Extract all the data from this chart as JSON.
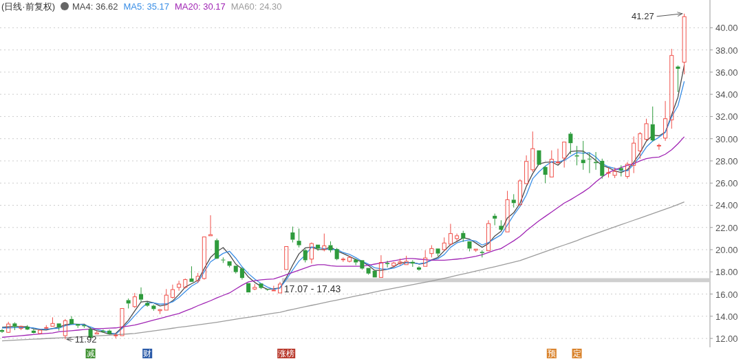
{
  "chart_data": {
    "type": "candlestick",
    "title": "(日线·前复权)",
    "legend": "top left",
    "grid": "y",
    "categories": [
      null,
      null,
      null,
      null,
      null,
      null,
      null,
      null,
      null,
      null,
      null,
      null,
      null,
      null,
      null,
      null,
      null,
      null,
      null,
      null,
      null,
      null,
      null,
      null,
      null,
      null,
      null,
      null,
      null,
      null,
      null,
      null,
      null,
      null,
      null,
      null,
      null,
      null,
      null,
      null,
      null,
      null,
      null,
      null,
      null,
      null,
      null,
      null,
      null,
      null,
      null,
      null,
      null,
      null,
      null,
      null,
      null,
      null,
      null,
      null,
      null,
      null,
      null,
      null,
      null,
      null,
      null,
      null,
      null,
      null,
      null,
      null,
      null,
      null,
      null,
      null,
      null,
      null,
      null,
      null,
      null,
      null,
      null,
      null,
      null,
      null,
      null,
      null,
      null,
      null,
      null,
      null,
      null,
      null,
      null,
      null,
      null,
      null,
      null,
      null,
      null,
      null,
      null,
      null,
      null,
      null,
      null,
      null,
      null
    ],
    "ylim": [
      11.2,
      42.5
    ],
    "yticks": [
      {
        "value": 12,
        "label": "12.00"
      },
      {
        "value": 14,
        "label": "14.00"
      },
      {
        "value": 16,
        "label": "16.00"
      },
      {
        "value": 18,
        "label": "18.00"
      },
      {
        "value": 20,
        "label": "20.00"
      },
      {
        "value": 22,
        "label": "22.00"
      },
      {
        "value": 24,
        "label": "24.00"
      },
      {
        "value": 26,
        "label": "26.00"
      },
      {
        "value": 28,
        "label": "28.00"
      },
      {
        "value": 30,
        "label": "30.00"
      },
      {
        "value": 32,
        "label": "32.00"
      },
      {
        "value": 34,
        "label": "34.00"
      },
      {
        "value": 36,
        "label": "36.00"
      },
      {
        "value": 38,
        "label": "38.00"
      },
      {
        "value": 40,
        "label": "40.00"
      }
    ],
    "colors": [
      "#2e9b3c",
      "#f0504a",
      "#2e9b3c",
      "#f0504a",
      "#2e9b3c",
      "#2e9b3c",
      "#f0504a",
      "#f0504a",
      "#f0504a",
      "#2e9b3c",
      "#f0504a",
      "#2e9b3c",
      "#2e9b3c",
      "#2e9b3c",
      "#2e9b3c",
      "#f0504a",
      "#2e9b3c",
      "#2e9b3c",
      "#f0504a",
      "#f0504a",
      "#2e9b3c",
      "#f0504a",
      "#2e9b3c",
      "#2e9b3c",
      "#2e9b3c",
      "#f0504a",
      "#f0504a",
      "#f0504a",
      "#f0504a",
      "#f0504a",
      "#2e9b3c",
      "#f0504a",
      "#f0504a",
      "#f0504a",
      "#2e9b3c",
      "#2e9b3c",
      "#2e9b3c",
      "#2e9b3c",
      "#2e9b3c",
      "#2e9b3c",
      "#f0504a",
      "#2e9b3c",
      "#2e9b3c",
      "#f0504a",
      "#f0504a",
      "#f0504a",
      "#2e9b3c",
      "#2e9b3c",
      "#2e9b3c",
      "#f0504a",
      "#2e9b3c",
      "#f0504a",
      "#2e9b3c",
      "#2e9b3c",
      "#f0504a",
      "#f0504a",
      "#2e9b3c",
      "#2e9b3c",
      "#2e9b3c",
      "#2e9b3c",
      "#f0504a",
      "#2e9b3c",
      "#f0504a",
      "#f0504a",
      "#f0504a",
      "#2e9b3c",
      "#2e9b3c",
      "#f0504a",
      "#f0504a",
      "#2e9b3c",
      "#f0504a",
      "#f0504a",
      "#f0504a",
      "#2e9b3c",
      "#2e9b3c",
      "#f0504a",
      "#2e9b3c",
      "#f0504a",
      "#2e9b3c",
      "#2e9b3c",
      "#f0504a",
      "#2e9b3c",
      "#f0504a",
      "#f0504a",
      "#f0504a",
      "#2e9b3c",
      "#2e9b3c",
      "#f0504a",
      "#f0504a",
      "#f0504a",
      "#2e9b3c",
      "#2e9b3c",
      "#2e9b3c",
      "#2e9b3c",
      "#2e9b3c",
      "#2e9b3c",
      "#f0504a",
      "#f0504a",
      "#2e9b3c",
      "#f0504a",
      "#f0504a",
      "#f0504a",
      "#f0504a",
      "#2e9b3c",
      "#f0504a",
      "#f0504a",
      "#f0504a",
      "#2e9b3c",
      "#f0504a"
    ],
    "ohlc": [
      [
        12.75,
        12.85,
        12.5,
        12.6
      ],
      [
        12.55,
        13.5,
        12.5,
        13.3
      ],
      [
        13.35,
        13.45,
        12.75,
        13.05
      ],
      [
        12.9,
        13.15,
        12.75,
        13.1
      ],
      [
        13.05,
        13.2,
        12.75,
        12.8
      ],
      [
        12.7,
        12.85,
        12.45,
        12.5
      ],
      [
        12.45,
        12.75,
        12.45,
        12.75
      ],
      [
        12.95,
        13.2,
        12.85,
        12.98
      ],
      [
        13.1,
        13.9,
        13.1,
        13.35
      ],
      [
        13.35,
        13.35,
        12.7,
        13.0
      ],
      [
        12.25,
        13.75,
        11.92,
        13.6
      ],
      [
        13.75,
        14.0,
        13.25,
        13.3
      ],
      [
        13.3,
        13.3,
        12.95,
        13.15
      ],
      [
        13.2,
        13.2,
        12.95,
        13.1
      ],
      [
        12.85,
        13.0,
        12.05,
        12.05
      ],
      [
        12.4,
        12.7,
        12.4,
        12.5
      ],
      [
        12.7,
        12.8,
        12.5,
        12.6
      ],
      [
        12.7,
        12.8,
        12.4,
        12.4
      ],
      [
        12.25,
        12.45,
        12.0,
        12.3
      ],
      [
        12.25,
        14.7,
        12.25,
        14.7
      ],
      [
        15.45,
        15.6,
        14.7,
        15.15
      ],
      [
        14.87,
        16.1,
        14.75,
        15.75
      ],
      [
        16.0,
        16.6,
        15.3,
        15.5
      ],
      [
        15.2,
        15.3,
        14.85,
        14.95
      ],
      [
        14.95,
        15.05,
        14.5,
        14.65
      ],
      [
        14.5,
        14.65,
        14.2,
        14.6
      ],
      [
        14.55,
        16.45,
        14.55,
        15.9
      ],
      [
        15.7,
        16.85,
        15.6,
        16.4
      ],
      [
        16.6,
        17.2,
        16.3,
        16.9
      ],
      [
        16.6,
        17.4,
        16.5,
        17.3
      ],
      [
        17.4,
        18.5,
        17.1,
        17.1
      ],
      [
        17.2,
        17.9,
        17.0,
        17.6
      ],
      [
        17.4,
        21.15,
        17.3,
        21.15
      ],
      [
        21.25,
        23.1,
        21.25,
        21.35
      ],
      [
        20.85,
        21.0,
        19.15,
        19.2
      ],
      [
        19.1,
        19.3,
        18.8,
        19.05
      ],
      [
        18.95,
        18.95,
        18.4,
        18.55
      ],
      [
        18.55,
        18.55,
        17.85,
        17.98
      ],
      [
        18.3,
        18.4,
        17.3,
        17.45
      ],
      [
        16.98,
        16.98,
        16.15,
        16.15
      ],
      [
        16.45,
        16.9,
        16.35,
        16.6
      ],
      [
        16.95,
        16.95,
        16.45,
        16.55
      ],
      [
        16.45,
        16.45,
        16.3,
        16.4
      ],
      [
        16.3,
        16.75,
        16.3,
        16.35
      ],
      [
        16.1,
        17.1,
        16.1,
        16.9
      ],
      [
        18.21,
        20.28,
        18.21,
        20.28
      ],
      [
        21.55,
        22.08,
        20.65,
        20.9
      ],
      [
        20.8,
        21.9,
        20.2,
        20.4
      ],
      [
        19.95,
        20.05,
        18.85,
        19.05
      ],
      [
        19.15,
        20.65,
        18.75,
        20.55
      ],
      [
        20.45,
        20.45,
        19.9,
        20.1
      ],
      [
        20.0,
        21.45,
        19.85,
        20.35
      ],
      [
        20.4,
        20.75,
        19.75,
        19.95
      ],
      [
        20.05,
        20.15,
        19.05,
        19.15
      ],
      [
        19.1,
        19.3,
        18.9,
        19.15
      ],
      [
        18.95,
        19.45,
        18.85,
        19.3
      ],
      [
        19.1,
        19.2,
        18.6,
        18.85
      ],
      [
        19.05,
        19.05,
        18.2,
        18.3
      ],
      [
        18.35,
        18.35,
        17.75,
        17.85
      ],
      [
        18.1,
        18.1,
        17.5,
        17.5
      ],
      [
        17.5,
        19.5,
        17.5,
        18.85
      ],
      [
        18.8,
        19.0,
        18.4,
        18.7
      ],
      [
        18.55,
        18.9,
        18.4,
        18.8
      ],
      [
        18.75,
        19.2,
        18.6,
        18.9
      ],
      [
        18.65,
        19.45,
        18.65,
        18.95
      ],
      [
        18.9,
        19.05,
        18.45,
        18.75
      ],
      [
        18.4,
        18.5,
        18.1,
        18.2
      ],
      [
        18.5,
        19.95,
        18.5,
        19.25
      ],
      [
        19.65,
        20.4,
        19.3,
        20.1
      ],
      [
        20.1,
        20.1,
        19.4,
        19.65
      ],
      [
        20.0,
        21.1,
        19.9,
        20.6
      ],
      [
        20.5,
        22.33,
        20.4,
        21.45
      ],
      [
        21.0,
        21.45,
        20.75,
        21.25
      ],
      [
        21.5,
        21.7,
        20.7,
        21.0
      ],
      [
        20.75,
        20.75,
        19.85,
        20.1
      ],
      [
        19.95,
        20.05,
        19.8,
        20.05
      ],
      [
        19.8,
        19.95,
        19.3,
        19.7
      ],
      [
        19.9,
        22.65,
        19.9,
        22.35
      ],
      [
        23.05,
        23.25,
        22.2,
        22.8
      ],
      [
        22.15,
        22.65,
        21.7,
        21.8
      ],
      [
        21.6,
        25.3,
        21.6,
        24.5
      ],
      [
        24.5,
        25.0,
        23.8,
        24.2
      ],
      [
        24.05,
        26.35,
        23.95,
        26.2
      ],
      [
        25.95,
        28.5,
        25.95,
        27.95
      ],
      [
        27.2,
        30.65,
        27.0,
        29.1
      ],
      [
        28.95,
        28.95,
        27.65,
        27.65
      ],
      [
        27.45,
        27.55,
        26.0,
        26.75
      ],
      [
        26.55,
        28.95,
        26.55,
        28.15
      ],
      [
        27.85,
        29.1,
        27.7,
        27.9
      ],
      [
        28.25,
        29.7,
        27.4,
        29.7
      ],
      [
        30.45,
        30.6,
        28.6,
        29.6
      ],
      [
        28.5,
        29.35,
        27.6,
        28.4
      ],
      [
        28.1,
        29.8,
        27.2,
        27.8
      ],
      [
        28.2,
        28.75,
        26.9,
        28.15
      ],
      [
        27.9,
        28.8,
        27.2,
        27.8
      ],
      [
        28.0,
        28.2,
        26.4,
        26.65
      ],
      [
        26.9,
        27.4,
        26.5,
        26.95
      ],
      [
        26.7,
        27.4,
        26.45,
        27.05
      ],
      [
        27.35,
        27.6,
        26.6,
        27.15
      ],
      [
        26.6,
        27.9,
        26.4,
        27.7
      ],
      [
        27.6,
        30.2,
        26.9,
        29.6
      ],
      [
        28.9,
        30.6,
        28.2,
        30.45
      ],
      [
        29.95,
        31.8,
        29.8,
        31.35
      ],
      [
        31.3,
        32.9,
        29.75,
        29.85
      ],
      [
        29.35,
        29.55,
        29.0,
        29.4
      ],
      [
        30.05,
        33.4,
        29.8,
        31.8
      ],
      [
        31.7,
        38.1,
        30.9,
        37.5
      ],
      [
        36.5,
        36.6,
        34.2,
        36.3
      ],
      [
        36.9,
        41.27,
        35.8,
        41.0
      ]
    ],
    "series": [
      {
        "name": "MA4: 36.62",
        "type": "line",
        "color": "#4a4a4a",
        "values": [
          13.0,
          13.05,
          13.1,
          13.05,
          13.06,
          12.86,
          12.79,
          12.76,
          12.9,
          13.02,
          13.23,
          13.31,
          13.26,
          13.29,
          12.9,
          12.7,
          12.56,
          12.39,
          12.45,
          13.0,
          13.64,
          14.48,
          15.28,
          15.34,
          15.21,
          14.93,
          15.03,
          15.39,
          15.95,
          16.63,
          16.93,
          17.23,
          18.29,
          19.3,
          19.83,
          20.19,
          19.54,
          18.7,
          18.26,
          17.53,
          17.05,
          16.69,
          16.43,
          16.48,
          16.55,
          17.48,
          18.61,
          19.62,
          20.16,
          20.23,
          20.03,
          20.01,
          20.24,
          19.89,
          19.65,
          19.39,
          19.11,
          18.9,
          18.58,
          18.13,
          18.13,
          18.23,
          18.46,
          18.81,
          18.84,
          18.85,
          18.7,
          18.79,
          19.08,
          19.3,
          19.9,
          20.45,
          20.74,
          21.08,
          20.95,
          20.6,
          20.21,
          20.55,
          21.23,
          21.66,
          22.86,
          23.33,
          24.18,
          25.71,
          26.86,
          27.73,
          27.86,
          27.91,
          27.61,
          28.13,
          28.84,
          28.9,
          28.88,
          28.49,
          28.04,
          27.6,
          27.39,
          27.11,
          26.95,
          27.21,
          27.88,
          28.73,
          29.78,
          30.31,
          30.26,
          30.6,
          32.14,
          33.75,
          36.62
        ]
      },
      {
        "name": "MA5: 35.17",
        "type": "line",
        "color": "#3a8ee6",
        "values": [
          12.95,
          12.95,
          12.97,
          12.97,
          12.97,
          12.95,
          12.84,
          12.83,
          12.88,
          12.92,
          13.14,
          13.25,
          13.28,
          13.23,
          13.04,
          12.82,
          12.68,
          12.53,
          12.37,
          12.9,
          13.43,
          14.06,
          14.68,
          15.21,
          15.2,
          15.09,
          15.12,
          15.3,
          15.69,
          16.22,
          16.72,
          17.06,
          18.01,
          18.9,
          19.28,
          19.67,
          19.86,
          19.23,
          18.45,
          17.84,
          17.35,
          16.95,
          16.63,
          16.41,
          16.56,
          17.3,
          18.17,
          18.97,
          19.51,
          20.24,
          20.2,
          20.09,
          20.0,
          20.02,
          19.74,
          19.58,
          19.28,
          18.95,
          18.69,
          18.36,
          18.27,
          18.24,
          18.34,
          18.55,
          18.84,
          18.82,
          18.72,
          18.81,
          19.05,
          19.19,
          19.56,
          20.21,
          20.61,
          20.79,
          20.88,
          20.77,
          20.42,
          20.64,
          21.0,
          21.34,
          22.23,
          23.13,
          23.9,
          24.93,
          26.39,
          27.02,
          27.53,
          27.92,
          27.91,
          28.03,
          28.42,
          28.75,
          28.68,
          28.73,
          28.35,
          27.76,
          27.47,
          27.32,
          27.12,
          27.1,
          27.69,
          28.39,
          29.25,
          29.79,
          30.13,
          30.57,
          31.98,
          32.97,
          35.17
        ]
      },
      {
        "name": "MA20: 30.17",
        "type": "line",
        "color": "#a024b4",
        "values": [
          12.1,
          12.15,
          12.2,
          12.25,
          12.3,
          12.35,
          12.4,
          12.45,
          12.5,
          12.6,
          12.65,
          12.7,
          12.75,
          12.8,
          12.85,
          12.88,
          12.9,
          12.93,
          12.95,
          13.03,
          13.12,
          13.2,
          13.35,
          13.5,
          13.65,
          13.8,
          13.95,
          14.1,
          14.25,
          14.48,
          14.7,
          14.95,
          15.17,
          15.4,
          15.65,
          15.88,
          16.1,
          16.45,
          16.8,
          17.1,
          17.2,
          17.28,
          17.33,
          17.36,
          17.55,
          17.75,
          17.95,
          18.15,
          18.35,
          18.55,
          18.65,
          18.65,
          18.55,
          18.5,
          18.5,
          18.5,
          18.5,
          18.5,
          18.6,
          18.7,
          18.8,
          18.9,
          19.0,
          19.1,
          19.2,
          19.2,
          19.15,
          19.1,
          19.05,
          19.05,
          19.05,
          19.1,
          19.15,
          19.2,
          19.3,
          19.4,
          19.55,
          19.75,
          19.95,
          20.1,
          20.45,
          20.8,
          21.2,
          21.7,
          22.15,
          22.6,
          23.0,
          23.4,
          23.8,
          24.2,
          24.5,
          24.85,
          25.2,
          25.6,
          26.1,
          26.55,
          26.95,
          27.2,
          27.4,
          27.6,
          27.75,
          28.0,
          28.2,
          28.3,
          28.35,
          28.6,
          29.0,
          29.55,
          30.17
        ]
      },
      {
        "name": "MA60: 24.30",
        "type": "line",
        "color": "#9c9c9c",
        "values": [
          11.78,
          11.81,
          11.84,
          11.87,
          11.9,
          11.93,
          11.96,
          11.99,
          12.02,
          12.05,
          12.08,
          12.11,
          12.14,
          12.17,
          12.2,
          12.23,
          12.26,
          12.29,
          12.33,
          12.37,
          12.41,
          12.45,
          12.53,
          12.6,
          12.68,
          12.76,
          12.84,
          12.92,
          13.0,
          13.07,
          13.15,
          13.22,
          13.3,
          13.38,
          13.46,
          13.55,
          13.64,
          13.73,
          13.82,
          13.91,
          14.0,
          14.09,
          14.18,
          14.27,
          14.36,
          14.5,
          14.62,
          14.74,
          14.86,
          14.98,
          15.1,
          15.22,
          15.34,
          15.46,
          15.58,
          15.7,
          15.82,
          15.94,
          16.06,
          16.18,
          16.3,
          16.41,
          16.52,
          16.63,
          16.74,
          16.85,
          16.96,
          17.07,
          17.18,
          17.3,
          17.42,
          17.55,
          17.68,
          17.81,
          17.94,
          18.07,
          18.2,
          18.33,
          18.46,
          18.6,
          18.74,
          18.88,
          19.02,
          19.22,
          19.42,
          19.62,
          19.82,
          20.02,
          20.22,
          20.42,
          20.62,
          20.82,
          21.05,
          21.25,
          21.45,
          21.65,
          21.85,
          22.05,
          22.25,
          22.45,
          22.65,
          22.85,
          23.05,
          23.25,
          23.45,
          23.65,
          23.85,
          24.07,
          24.3
        ]
      }
    ],
    "bands": [
      {
        "axis": "y",
        "from": 17.07,
        "to": 17.43,
        "label": "17.07 - 17.43",
        "color": "#cfcfcf"
      }
    ],
    "annotations": [
      "41.27",
      "11.92",
      "减",
      "财",
      "涨榜",
      "预",
      "定"
    ]
  }
}
